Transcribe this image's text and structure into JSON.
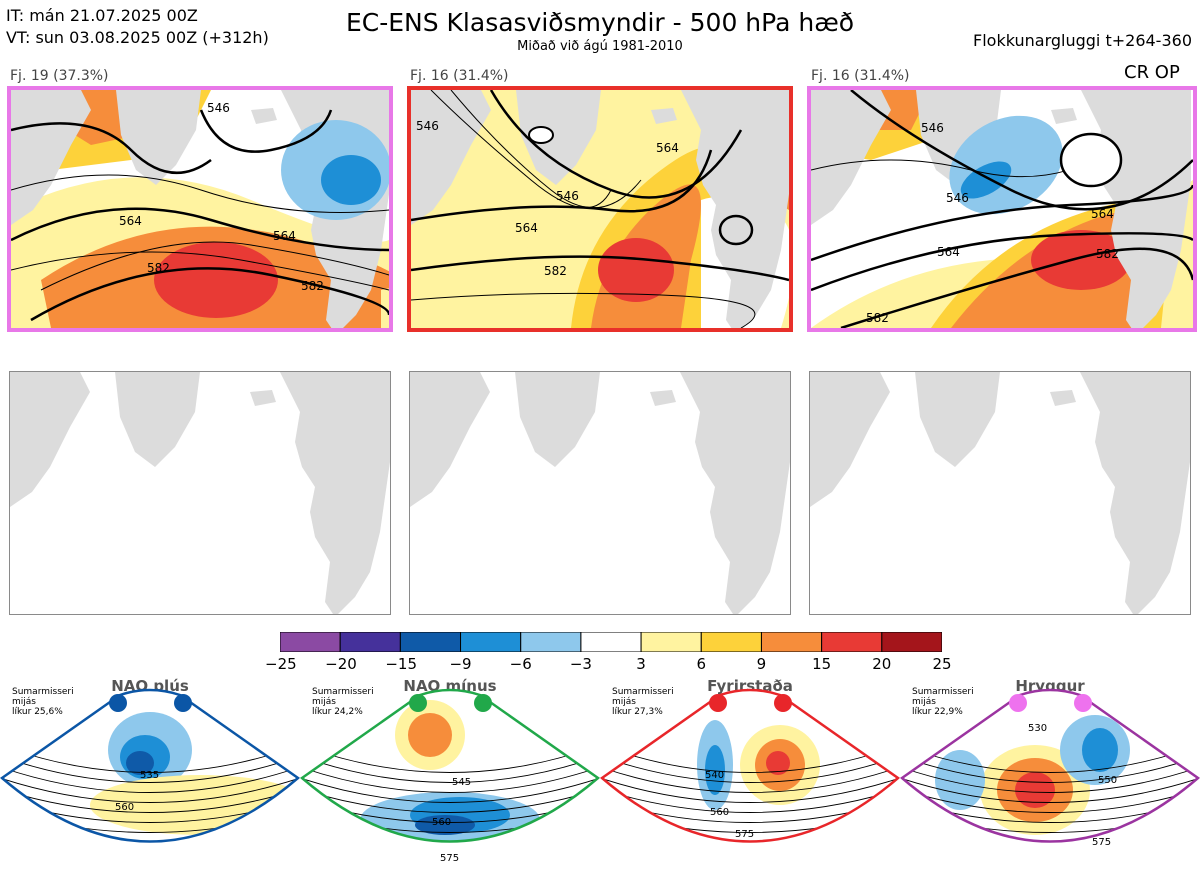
{
  "header": {
    "it": "IT: mán 21.07.2025 00Z",
    "vt": "VT: sun 03.08.2025 00Z  (+312h)",
    "title": "EC-ENS Klasasviðsmyndir - 500 hPa hæð",
    "subtitle": "Miðað við ágú 1981-2010",
    "window": "Flokkunargluggi t+264-360",
    "crop": "CR OP"
  },
  "panels": [
    {
      "label": "Fj. 19 (37.3%)",
      "border_color": "#e878e8",
      "contours": [
        "546",
        "564",
        "564",
        "582",
        "582"
      ]
    },
    {
      "label": "Fj. 16 (31.4%)",
      "border_color": "#e8302a",
      "contours": [
        "546",
        "546",
        "564",
        "564",
        "582"
      ]
    },
    {
      "label": "Fj. 16 (31.4%)",
      "border_color": "#e878e8",
      "contours": [
        "546",
        "546",
        "564",
        "564",
        "582",
        "582"
      ]
    }
  ],
  "colorbar": {
    "ticks": [
      "−25",
      "−20",
      "−15",
      "−9",
      "−6",
      "−3",
      "3",
      "6",
      "9",
      "15",
      "20",
      "25"
    ],
    "colors": [
      "#8b4aa3",
      "#45319b",
      "#0f5aa8",
      "#1e8fd6",
      "#8ec8ec",
      "#ffffff",
      "#fff3a0",
      "#fdd23a",
      "#f68d3b",
      "#e83a35",
      "#a4151b"
    ]
  },
  "regimes": [
    {
      "name": "NAO plús",
      "season": "Sumarmisseri",
      "avg": "mijás",
      "prob": "líkur 25,6%",
      "color": "#0b56a6",
      "contours": [
        "535",
        "560"
      ]
    },
    {
      "name": "NAO mínus",
      "season": "Sumarmisseri",
      "avg": "mijás",
      "prob": "líkur 24,2%",
      "color": "#21a84a",
      "contours": [
        "545",
        "560",
        "575"
      ]
    },
    {
      "name": "Fyrirstaða",
      "season": "Sumarmisseri",
      "avg": "mijás",
      "prob": "líkur 27,3%",
      "color": "#e8262a",
      "contours": [
        "540",
        "560",
        "575"
      ]
    },
    {
      "name": "Hryggur",
      "season": "Sumarmisseri",
      "avg": "mijás",
      "prob": "líkur 22,9%",
      "color": "#9b34a0",
      "dot_color": "#ee72ee",
      "contours": [
        "530",
        "550",
        "575"
      ]
    }
  ]
}
